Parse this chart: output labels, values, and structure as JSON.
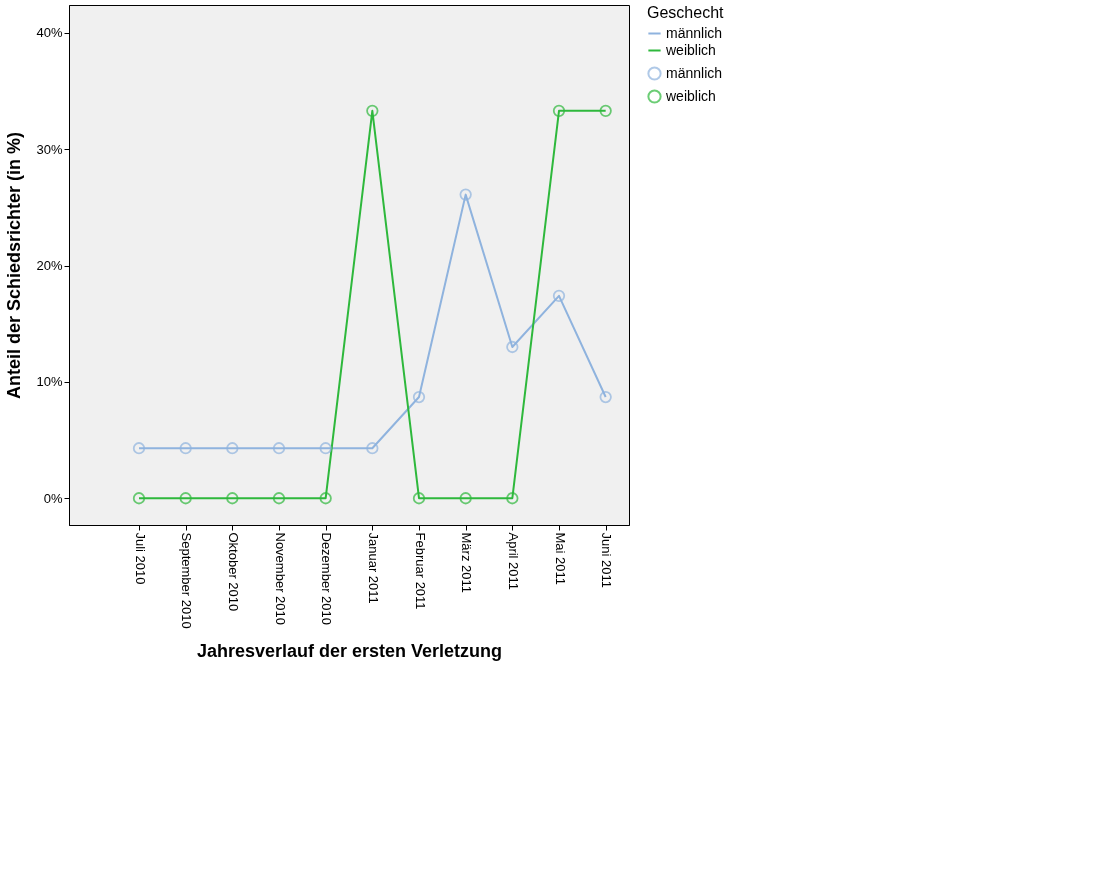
{
  "chart_data": {
    "type": "line",
    "xlabel": "Jahresverlauf der ersten Verletzung",
    "ylabel": "Anteil der Schiedsrichter (in %)",
    "legend_title": "Geschecht",
    "categories": [
      "Juli 2010",
      "September 2010",
      "Oktober 2010",
      "November 2010",
      "Dezember 2010",
      "Januar 2011",
      "Februar 2011",
      "März 2011",
      "April 2011",
      "Mai 2011",
      "Juni 2011"
    ],
    "series": [
      {
        "name": "männlich",
        "color": "#8fb3de",
        "values": [
          4.3,
          4.3,
          4.3,
          4.3,
          4.3,
          4.3,
          8.7,
          26.1,
          13.0,
          17.4,
          8.7
        ]
      },
      {
        "name": "weiblich",
        "color": "#2eb83c",
        "values": [
          0,
          0,
          0,
          0,
          0,
          33.3,
          0,
          0,
          0,
          33.3,
          33.3
        ]
      }
    ],
    "ylim": [
      -2.3,
      42.4
    ],
    "yticks": [
      {
        "value": 0,
        "label": "0%"
      },
      {
        "value": 10,
        "label": "10%"
      },
      {
        "value": 20,
        "label": "20%"
      },
      {
        "value": 30,
        "label": "30%"
      },
      {
        "value": 40,
        "label": "40%"
      }
    ],
    "grid": false,
    "legend": "top right",
    "marker": "circle",
    "line_style": "solid"
  }
}
